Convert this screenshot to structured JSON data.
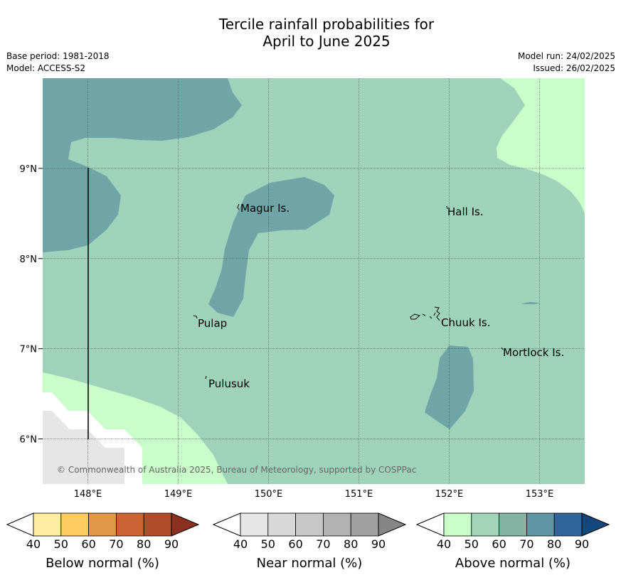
{
  "header": {
    "title_line1": "Tercile rainfall probabilities for",
    "title_line2": "April to June 2025",
    "base_period": "Base period: 1981-2018",
    "model": "Model: ACCESS-S2",
    "model_run": "Model run: 24/02/2025",
    "issued": "Issued: 26/02/2025"
  },
  "map": {
    "lon_labels": [
      "148°E",
      "149°E",
      "150°E",
      "151°E",
      "152°E",
      "153°E"
    ],
    "lat_labels": [
      "9°N",
      "8°N",
      "7°N",
      "6°N"
    ],
    "places": [
      {
        "name": "Magur Is."
      },
      {
        "name": "Hall Is."
      },
      {
        "name": "Pulap"
      },
      {
        "name": "Chuuk Is."
      },
      {
        "name": "Mortlock Is."
      },
      {
        "name": "Pulusuk"
      }
    ],
    "copyright": "© Commonwealth of Australia 2025, Bureau of Meteorology, supported by COSPPac",
    "colors": {
      "above_50_60": "#9fd2ba",
      "above_60_70": "#6fa5a6",
      "above_40_50": "#c9fdc9",
      "near_normal_shade": "#e6e6e6",
      "grid": "#555555"
    }
  },
  "legends": [
    {
      "label": "Below normal (%)",
      "ticks": [
        "40",
        "50",
        "60",
        "70",
        "80",
        "90"
      ],
      "colors": [
        "#ffeda0",
        "#fecb62",
        "#e29847",
        "#cd6335",
        "#b04c29",
        "#8b2f1e"
      ]
    },
    {
      "label": "Near normal (%)",
      "ticks": [
        "40",
        "50",
        "60",
        "70",
        "80",
        "90"
      ],
      "colors": [
        "#e6e6e6",
        "#d8d8d8",
        "#c7c7c7",
        "#b2b2b2",
        "#a0a0a0",
        "#868686"
      ]
    },
    {
      "label": "Above normal (%)",
      "ticks": [
        "40",
        "50",
        "60",
        "70",
        "80",
        "90"
      ],
      "colors": [
        "#c9fdc9",
        "#a1d4b9",
        "#83b3a2",
        "#5f96a4",
        "#2f659b",
        "#13477c"
      ]
    }
  ]
}
